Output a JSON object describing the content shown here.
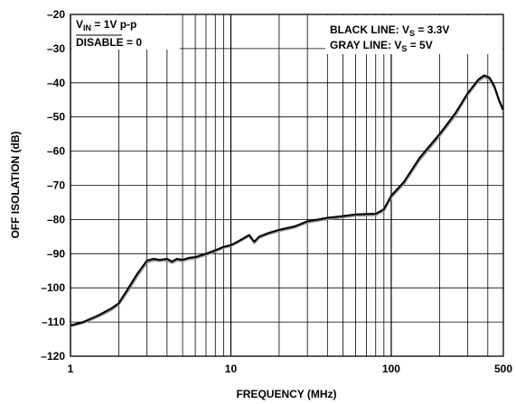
{
  "chart_data": {
    "type": "line",
    "title": "",
    "xlabel": "FREQUENCY (MHz)",
    "ylabel": "OFF ISOLATION (dB)",
    "xscale": "log",
    "xlim": [
      1,
      500
    ],
    "ylim": [
      -120,
      -20
    ],
    "x_ticks": [
      "1",
      "10",
      "100",
      "500"
    ],
    "y_ticks": [
      "–20",
      "–30",
      "–40",
      "–50",
      "–60",
      "–70",
      "–80",
      "–90",
      "–100",
      "–110",
      "–120"
    ],
    "grid": true,
    "annotations": {
      "vin_main": "V",
      "vin_sub": "IN",
      "vin_rest": " = 1V p-p",
      "disable_bar": "DISABLE",
      "disable_rest": " = 0",
      "black_main": "BLACK LINE: V",
      "black_sub": "S",
      "black_rest": " = 3.3V",
      "gray_main": "GRAY LINE: V",
      "gray_sub": "S",
      "gray_rest": " = 5V"
    },
    "series": [
      {
        "color": "#000000",
        "x": [
          1,
          1.2,
          1.5,
          1.8,
          2.0,
          2.3,
          2.6,
          3.0,
          3.3,
          3.6,
          4.0,
          4.3,
          4.6,
          5.0,
          5.5,
          6.0,
          7.0,
          8.0,
          9.0,
          10,
          11,
          12,
          13,
          14,
          15,
          17,
          20,
          25,
          30,
          35,
          40,
          50,
          60,
          70,
          80,
          90,
          100,
          120,
          150,
          200,
          250,
          300,
          350,
          380,
          410,
          440,
          470,
          500
        ],
        "y": [
          -111,
          -110,
          -108,
          -106,
          -104.5,
          -100,
          -96,
          -92,
          -91.5,
          -91.8,
          -91.5,
          -92.3,
          -91.5,
          -91.8,
          -91.2,
          -91,
          -90,
          -89,
          -88,
          -87.5,
          -86.5,
          -85.5,
          -84.5,
          -86.5,
          -85,
          -84,
          -83,
          -82,
          -80.5,
          -80,
          -79.5,
          -79,
          -78.5,
          -78.4,
          -78.3,
          -77,
          -73,
          -69,
          -62,
          -55,
          -49,
          -43,
          -39,
          -37.8,
          -38.5,
          -41,
          -45,
          -48
        ]
      },
      {
        "color": "#8c8c8c",
        "x": [
          1,
          1.2,
          1.5,
          1.8,
          2.0,
          2.3,
          2.6,
          3.0,
          3.3,
          3.6,
          4.0,
          4.3,
          4.6,
          5.0,
          5.5,
          6.0,
          7.0,
          8.0,
          9.0,
          10,
          11,
          12,
          13,
          14,
          15,
          17,
          20,
          25,
          30,
          35,
          40,
          50,
          60,
          70,
          80,
          90,
          100,
          120,
          150,
          200,
          250,
          300,
          350,
          380,
          410,
          440,
          470,
          500
        ],
        "y": [
          -111.3,
          -110.3,
          -108.4,
          -106.5,
          -105,
          -100.8,
          -96.8,
          -92.6,
          -92,
          -92.2,
          -92,
          -92.8,
          -92,
          -92.2,
          -91.6,
          -91.4,
          -90.4,
          -89.4,
          -88.3,
          -87.8,
          -86.8,
          -85.8,
          -84.9,
          -86.9,
          -85.4,
          -84.4,
          -83.4,
          -82.4,
          -80.9,
          -80.4,
          -79.9,
          -79.4,
          -78.9,
          -78.8,
          -78.7,
          -77.5,
          -73.6,
          -69.6,
          -62.7,
          -55.7,
          -49.7,
          -43.6,
          -39.5,
          -38.4,
          -39,
          -41.5,
          -45.4,
          -48.3
        ]
      }
    ]
  }
}
